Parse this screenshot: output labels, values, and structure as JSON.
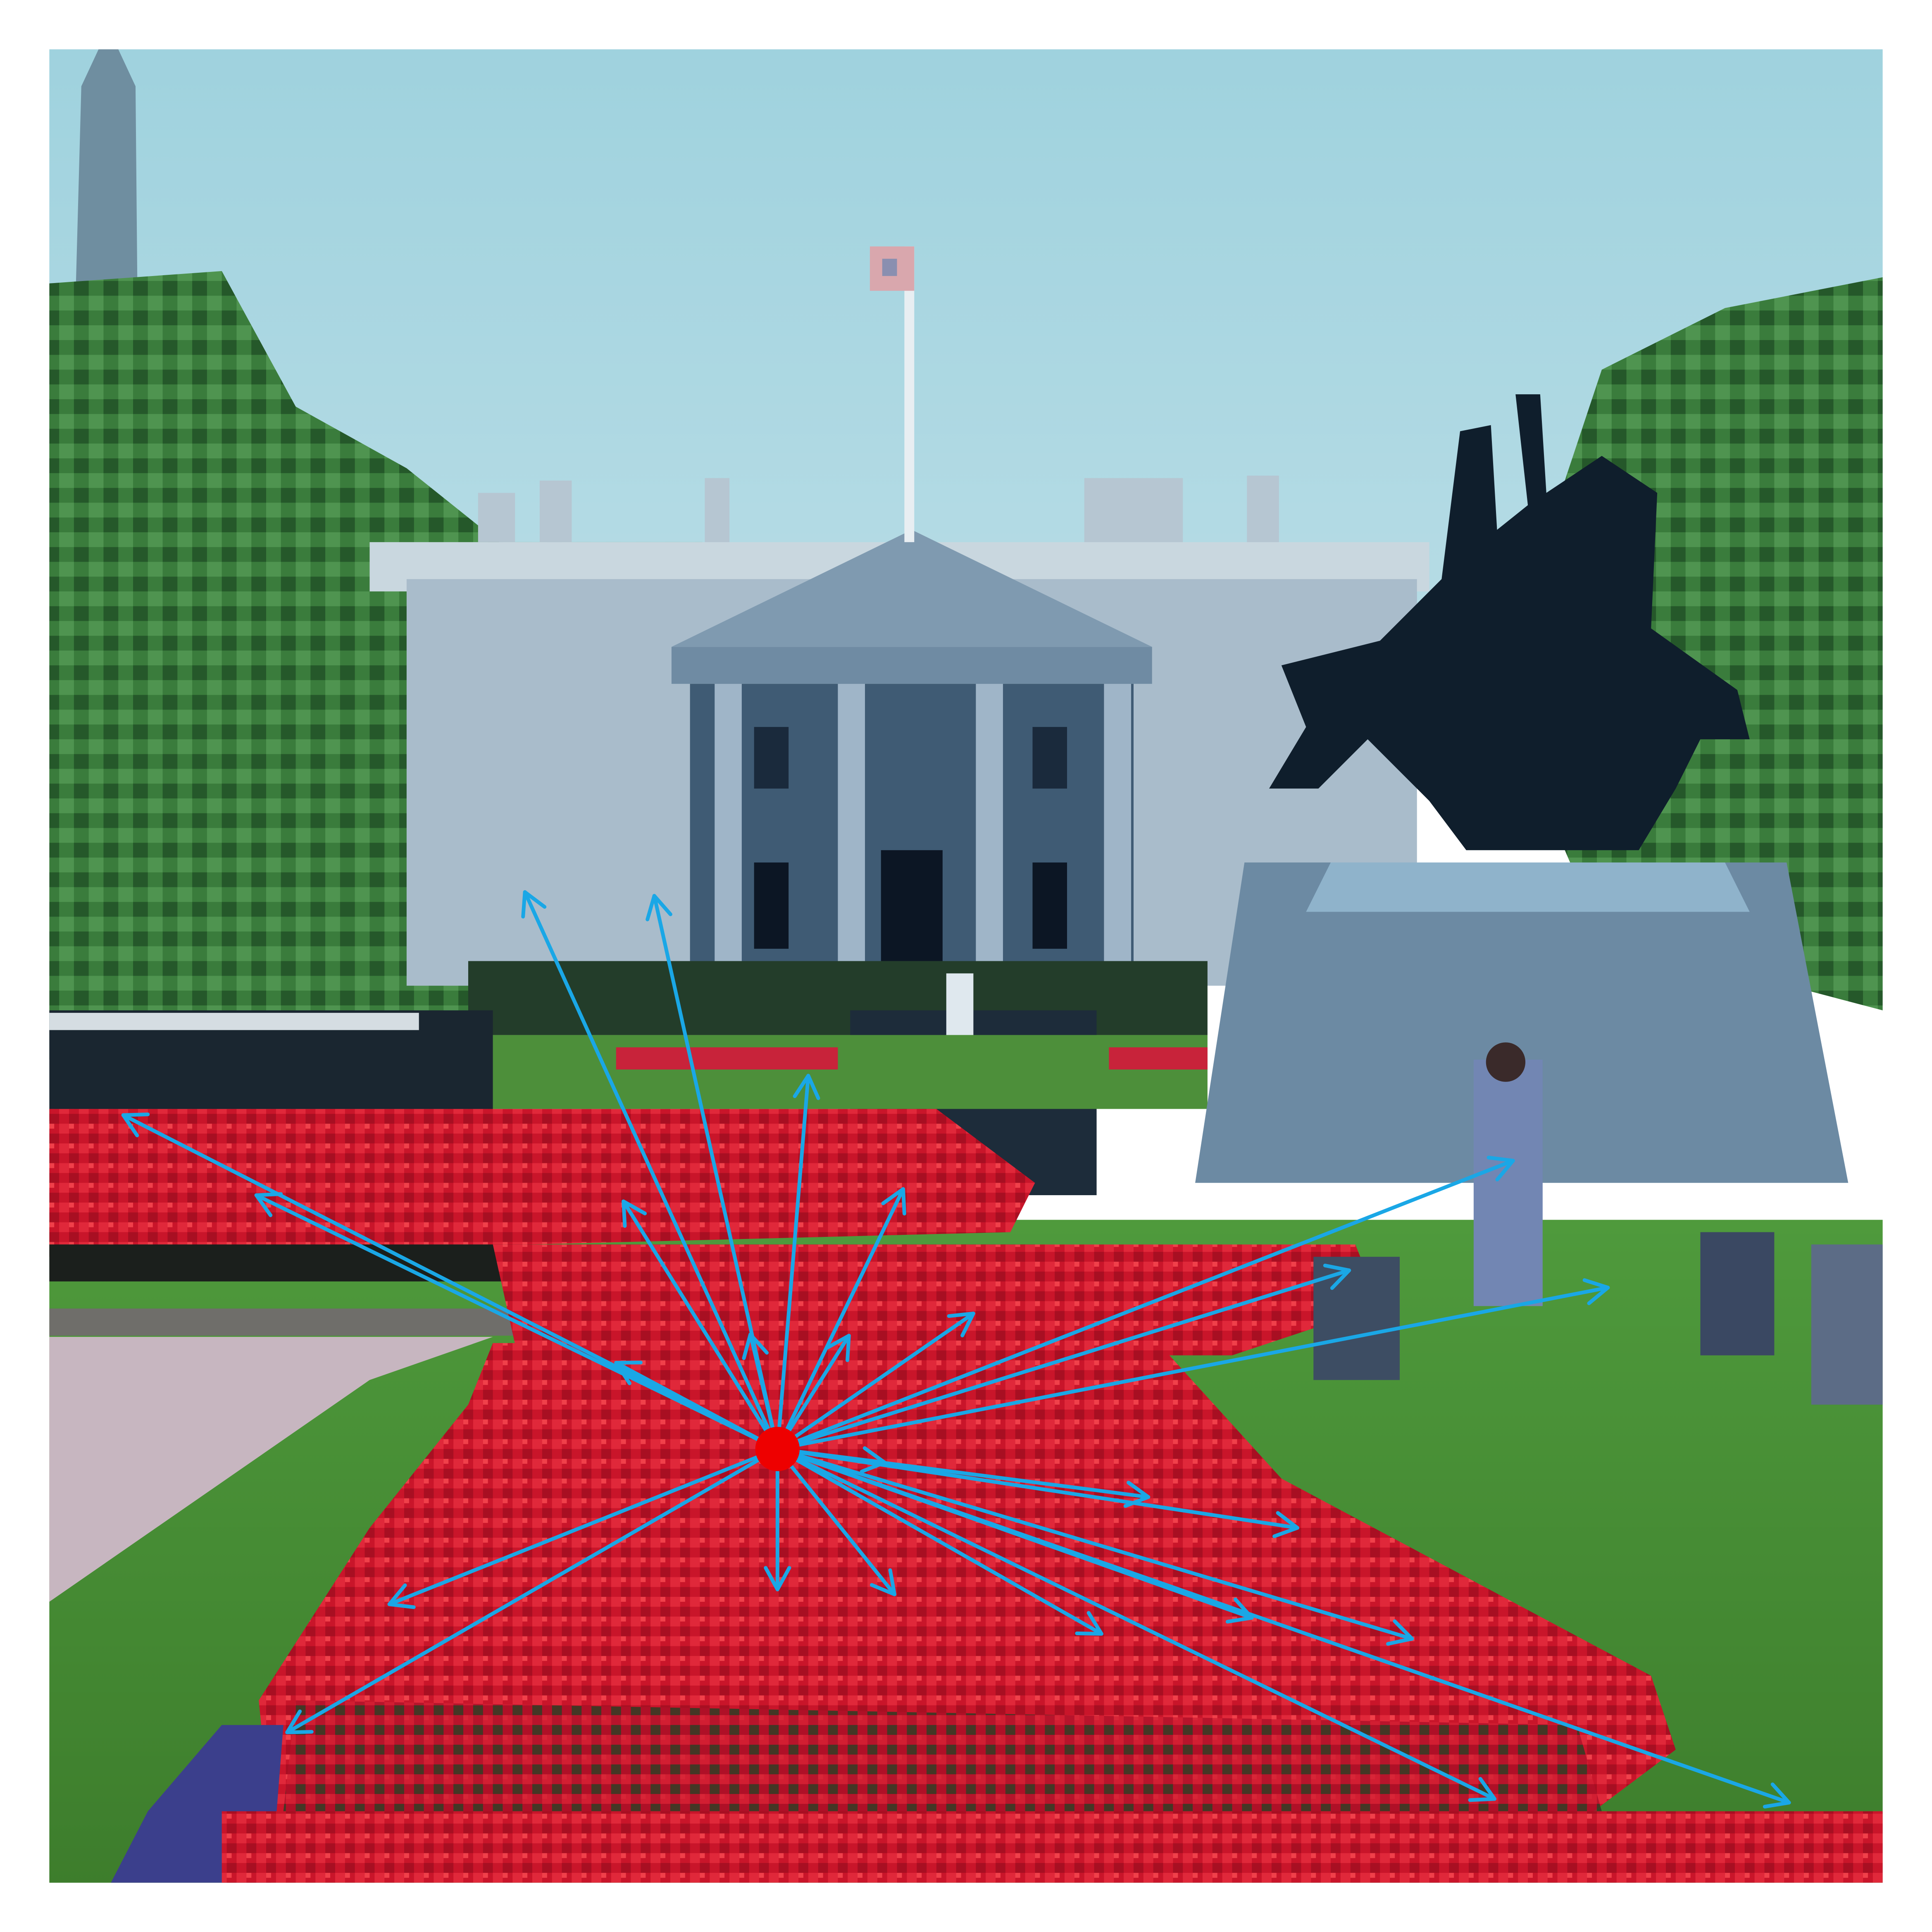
{
  "figure": {
    "description_free": true
  },
  "colors": {
    "arrow": "#1aa7e6",
    "origin_dot": "#ee0000",
    "sky": "#a9d6e2",
    "tulip_red": "#d41a2a",
    "lawn": "#5a9a3a",
    "tree": "#2f6e33",
    "building": "#a8bccd",
    "building_shadow": "#4a6680",
    "statue": "#0e1d2c",
    "pedestal": "#6f8ea6",
    "path": "#c7b6c0",
    "frame": "#ffffff"
  },
  "icons": {
    "origin": "origin-point-marker",
    "arrows": "flow-arrow"
  }
}
